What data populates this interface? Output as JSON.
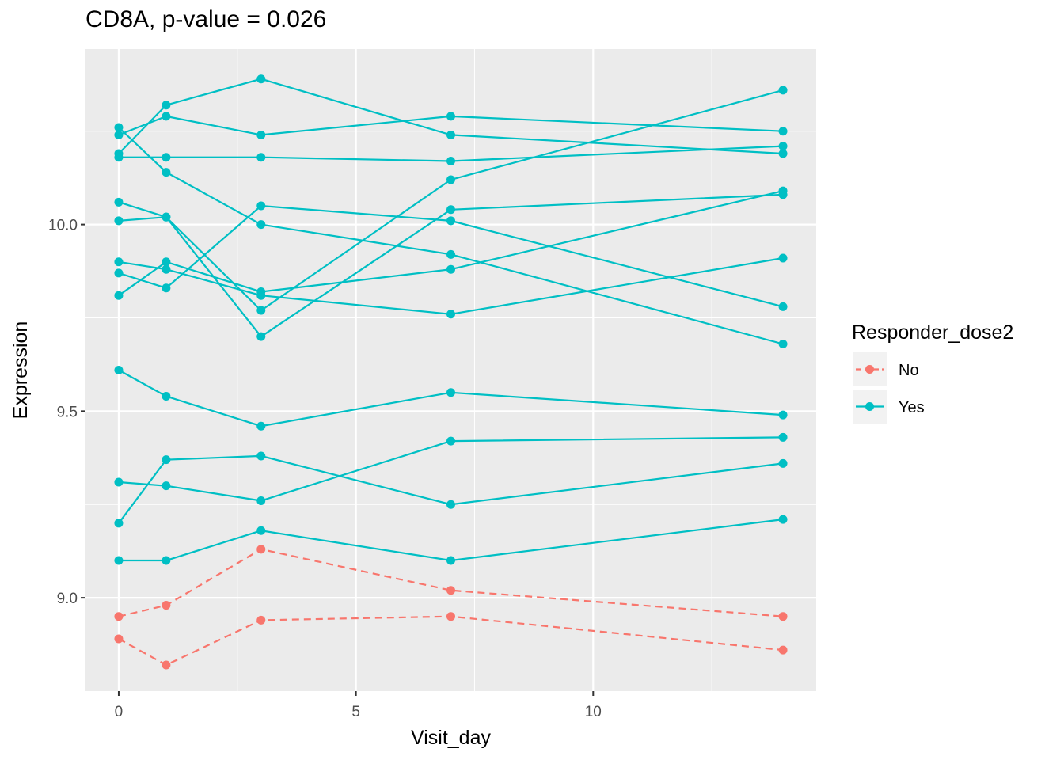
{
  "chart_data": {
    "type": "line",
    "title": "CD8A, p-value = 0.026",
    "xlabel": "Visit_day",
    "ylabel": "Expression",
    "xlim": [
      -0.7,
      14.7
    ],
    "ylim": [
      8.75,
      10.47
    ],
    "x_ticks": [
      0,
      5,
      10
    ],
    "x_tick_labels": [
      "0",
      "5",
      "10"
    ],
    "x_minor_ticks": [
      2.5,
      7.5,
      12.5
    ],
    "y_ticks": [
      9.0,
      9.5,
      10.0
    ],
    "y_tick_labels": [
      "9.0",
      "9.5",
      "10.0"
    ],
    "y_minor_ticks": [
      9.25,
      9.75,
      10.25
    ],
    "grid": true,
    "legend": {
      "title": "Responder_dose2",
      "placement": "right",
      "entries": [
        {
          "label": "No",
          "color": "#F8766D",
          "linestyle": "dashed"
        },
        {
          "label": "Yes",
          "color": "#00BFC4",
          "linestyle": "solid"
        }
      ]
    },
    "series": [
      {
        "group": "Yes",
        "x": [
          0,
          1,
          3,
          7,
          14
        ],
        "y": [
          10.26,
          10.14,
          10.0,
          9.92,
          9.68
        ]
      },
      {
        "group": "Yes",
        "x": [
          0,
          1,
          3,
          7,
          14
        ],
        "y": [
          10.24,
          10.29,
          10.24,
          10.29,
          10.25
        ]
      },
      {
        "group": "Yes",
        "x": [
          0,
          1,
          3,
          7,
          14
        ],
        "y": [
          10.19,
          10.32,
          10.39,
          10.24,
          10.19
        ]
      },
      {
        "group": "Yes",
        "x": [
          0,
          1,
          3,
          7,
          14
        ],
        "y": [
          10.18,
          10.18,
          10.18,
          10.17,
          10.21
        ]
      },
      {
        "group": "Yes",
        "x": [
          0,
          1,
          3,
          7,
          14
        ],
        "y": [
          10.06,
          10.02,
          9.7,
          10.04,
          10.08
        ]
      },
      {
        "group": "Yes",
        "x": [
          0,
          1,
          3,
          7,
          14
        ],
        "y": [
          10.01,
          10.02,
          9.77,
          10.12,
          10.36
        ]
      },
      {
        "group": "Yes",
        "x": [
          0,
          1,
          3,
          7,
          14
        ],
        "y": [
          9.9,
          9.88,
          9.81,
          9.76,
          9.91
        ]
      },
      {
        "group": "Yes",
        "x": [
          0,
          1,
          3,
          7,
          14
        ],
        "y": [
          9.87,
          9.83,
          10.05,
          10.01,
          9.78
        ]
      },
      {
        "group": "Yes",
        "x": [
          0,
          1,
          3,
          7,
          14
        ],
        "y": [
          9.81,
          9.9,
          9.82,
          9.88,
          10.09
        ]
      },
      {
        "group": "Yes",
        "x": [
          0,
          1,
          3,
          7,
          14
        ],
        "y": [
          9.61,
          9.54,
          9.46,
          9.55,
          9.49
        ]
      },
      {
        "group": "Yes",
        "x": [
          0,
          1,
          3,
          7,
          14
        ],
        "y": [
          9.31,
          9.3,
          9.26,
          9.42,
          9.43
        ]
      },
      {
        "group": "Yes",
        "x": [
          0,
          1,
          3,
          7,
          14
        ],
        "y": [
          9.2,
          9.37,
          9.38,
          9.25,
          9.36
        ]
      },
      {
        "group": "Yes",
        "x": [
          0,
          1,
          3,
          7,
          14
        ],
        "y": [
          9.1,
          9.1,
          9.18,
          9.1,
          9.21
        ]
      },
      {
        "group": "No",
        "x": [
          0,
          1,
          3,
          7,
          14
        ],
        "y": [
          8.95,
          8.98,
          9.13,
          9.02,
          8.95
        ]
      },
      {
        "group": "No",
        "x": [
          0,
          1,
          3,
          7,
          14
        ],
        "y": [
          8.89,
          8.82,
          8.94,
          8.95,
          8.86
        ]
      }
    ]
  }
}
